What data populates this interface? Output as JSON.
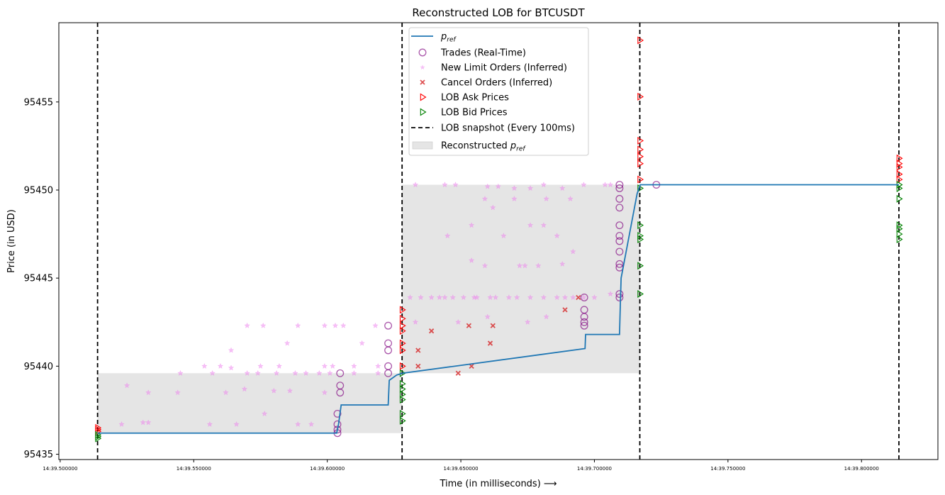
{
  "chart_data": {
    "type": "scatter",
    "title": "Reconstructed LOB for BTCUSDT",
    "xlabel": "Time (in milliseconds) ⟶",
    "ylabel": "Price (in USD)",
    "x_unit": "seconds past 14:39",
    "xlim": [
      39.4995,
      39.8286
    ],
    "ylim": [
      95434.7,
      95459.5
    ],
    "x_ticks": [
      {
        "value": 39.5,
        "label": "14:39.500000"
      },
      {
        "value": 39.55,
        "label": "14:39.550000"
      },
      {
        "value": 39.6,
        "label": "14:39.600000"
      },
      {
        "value": 39.65,
        "label": "14:39.650000"
      },
      {
        "value": 39.7,
        "label": "14:39.700000"
      },
      {
        "value": 39.75,
        "label": "14:39.750000"
      },
      {
        "value": 39.8,
        "label": "14:39.800000"
      }
    ],
    "y_ticks": [
      95435,
      95440,
      95445,
      95450,
      95455
    ],
    "legend_position": "top-center",
    "grid": false,
    "colors": {
      "pref": "#1f77b4",
      "trades": "#800080",
      "new_limit": "#ee82ee",
      "cancel": "#d62728",
      "ask": "#ff0000",
      "bid": "#008000",
      "snapshot": "#000000",
      "band": "#d3d3d3"
    },
    "legend": [
      {
        "key": "pref",
        "label": "p",
        "sub": "ref"
      },
      {
        "key": "trades",
        "label": "Trades (Real-Time)"
      },
      {
        "key": "new_limit",
        "label": "New Limit Orders (Inferred)"
      },
      {
        "key": "cancel",
        "label": "Cancel Orders (Inferred)"
      },
      {
        "key": "ask",
        "label": "LOB Ask Prices"
      },
      {
        "key": "bid",
        "label": "LOB Bid Prices"
      },
      {
        "key": "snapshot",
        "label": "LOB snapshot (Every 100ms)"
      },
      {
        "key": "band",
        "label": "Reconstructed p",
        "sub": "ref"
      }
    ],
    "snapshots": [
      39.514,
      39.628,
      39.717,
      39.814
    ],
    "bands": [
      {
        "x0": 39.514,
        "x1": 39.628,
        "y0": 95436.2,
        "y1": 95439.6
      },
      {
        "x0": 39.628,
        "x1": 39.717,
        "y0": 95439.6,
        "y1": 95450.3
      }
    ],
    "series": [
      {
        "name": "p_ref",
        "kind": "line",
        "points": [
          [
            39.514,
            95436.2
          ],
          [
            39.6035,
            95436.2
          ],
          [
            39.6042,
            95436.7
          ],
          [
            39.6052,
            95437.8
          ],
          [
            39.6228,
            95437.8
          ],
          [
            39.6232,
            95439.2
          ],
          [
            39.626,
            95439.5
          ],
          [
            39.6282,
            95439.6
          ],
          [
            39.6965,
            95441.0
          ],
          [
            39.6967,
            95441.8
          ],
          [
            39.7094,
            95441.8
          ],
          [
            39.7098,
            95444.0
          ],
          [
            39.71,
            95445.0
          ],
          [
            39.716,
            95449.8
          ],
          [
            39.7172,
            95450.3
          ],
          [
            39.814,
            95450.3
          ]
        ]
      },
      {
        "name": "Trades (Real-Time)",
        "kind": "circle",
        "points": [
          [
            39.6038,
            95436.2
          ],
          [
            39.6038,
            95436.4
          ],
          [
            39.6038,
            95436.7
          ],
          [
            39.6038,
            95437.3
          ],
          [
            39.6048,
            95438.5
          ],
          [
            39.6048,
            95438.9
          ],
          [
            39.6048,
            95439.6
          ],
          [
            39.6228,
            95439.6
          ],
          [
            39.6228,
            95440.0
          ],
          [
            39.6228,
            95440.9
          ],
          [
            39.6228,
            95441.3
          ],
          [
            39.6228,
            95442.3
          ],
          [
            39.6962,
            95442.3
          ],
          [
            39.6962,
            95442.5
          ],
          [
            39.6962,
            95442.8
          ],
          [
            39.6962,
            95443.2
          ],
          [
            39.6962,
            95443.9
          ],
          [
            39.7094,
            95443.9
          ],
          [
            39.7094,
            95444.1
          ],
          [
            39.7094,
            95445.6
          ],
          [
            39.7094,
            95445.8
          ],
          [
            39.7094,
            95446.5
          ],
          [
            39.7094,
            95447.1
          ],
          [
            39.7094,
            95447.4
          ],
          [
            39.7094,
            95448.0
          ],
          [
            39.7094,
            95449.0
          ],
          [
            39.7094,
            95449.5
          ],
          [
            39.7094,
            95450.1
          ],
          [
            39.7094,
            95450.3
          ],
          [
            39.7232,
            95450.3
          ]
        ]
      },
      {
        "name": "New Limit Orders (Inferred)",
        "kind": "star",
        "points": [
          [
            39.523,
            95436.7
          ],
          [
            39.531,
            95436.8
          ],
          [
            39.533,
            95436.8
          ],
          [
            39.556,
            95436.7
          ],
          [
            39.566,
            95436.7
          ],
          [
            39.5765,
            95437.3
          ],
          [
            39.589,
            95436.7
          ],
          [
            39.594,
            95436.7
          ],
          [
            39.525,
            95438.9
          ],
          [
            39.533,
            95438.5
          ],
          [
            39.544,
            95438.5
          ],
          [
            39.569,
            95438.7
          ],
          [
            39.58,
            95438.6
          ],
          [
            39.586,
            95438.6
          ],
          [
            39.599,
            95438.5
          ],
          [
            39.562,
            95438.5
          ],
          [
            39.545,
            95439.6
          ],
          [
            39.557,
            95439.6
          ],
          [
            39.564,
            95439.9
          ],
          [
            39.57,
            95439.6
          ],
          [
            39.574,
            95439.6
          ],
          [
            39.581,
            95439.6
          ],
          [
            39.588,
            95439.6
          ],
          [
            39.592,
            95439.6
          ],
          [
            39.597,
            95439.6
          ],
          [
            39.601,
            95439.6
          ],
          [
            39.61,
            95439.6
          ],
          [
            39.619,
            95439.6
          ],
          [
            39.554,
            95440.0
          ],
          [
            39.56,
            95440.0
          ],
          [
            39.575,
            95440.0
          ],
          [
            39.582,
            95440.0
          ],
          [
            39.599,
            95440.0
          ],
          [
            39.602,
            95440.0
          ],
          [
            39.61,
            95440.0
          ],
          [
            39.619,
            95440.0
          ],
          [
            39.564,
            95440.9
          ],
          [
            39.57,
            95442.3
          ],
          [
            39.576,
            95442.3
          ],
          [
            39.585,
            95441.3
          ],
          [
            39.589,
            95442.3
          ],
          [
            39.599,
            95442.3
          ],
          [
            39.606,
            95442.3
          ],
          [
            39.613,
            95441.3
          ],
          [
            39.618,
            95442.3
          ],
          [
            39.603,
            95442.3
          ],
          [
            39.631,
            95443.9
          ],
          [
            39.633,
            95442.5
          ],
          [
            39.635,
            95443.9
          ],
          [
            39.639,
            95443.9
          ],
          [
            39.642,
            95443.9
          ],
          [
            39.644,
            95443.9
          ],
          [
            39.647,
            95443.9
          ],
          [
            39.649,
            95442.5
          ],
          [
            39.651,
            95443.9
          ],
          [
            39.655,
            95443.9
          ],
          [
            39.661,
            95443.9
          ],
          [
            39.663,
            95443.9
          ],
          [
            39.668,
            95443.9
          ],
          [
            39.671,
            95443.9
          ],
          [
            39.676,
            95443.9
          ],
          [
            39.681,
            95443.9
          ],
          [
            39.686,
            95443.9
          ],
          [
            39.689,
            95443.9
          ],
          [
            39.692,
            95443.9
          ],
          [
            39.696,
            95443.9
          ],
          [
            39.654,
            95446.0
          ],
          [
            39.659,
            95445.7
          ],
          [
            39.666,
            95447.4
          ],
          [
            39.672,
            95445.7
          ],
          [
            39.674,
            95445.7
          ],
          [
            39.679,
            95445.7
          ],
          [
            39.688,
            95445.8
          ],
          [
            39.692,
            95446.5
          ],
          [
            39.645,
            95447.4
          ],
          [
            39.654,
            95448.0
          ],
          [
            39.662,
            95449.0
          ],
          [
            39.67,
            95449.5
          ],
          [
            39.676,
            95448.0
          ],
          [
            39.681,
            95448.0
          ],
          [
            39.686,
            95447.4
          ],
          [
            39.691,
            95449.5
          ],
          [
            39.633,
            95450.3
          ],
          [
            39.644,
            95450.3
          ],
          [
            39.648,
            95450.3
          ],
          [
            39.66,
            95450.2
          ],
          [
            39.664,
            95450.2
          ],
          [
            39.67,
            95450.1
          ],
          [
            39.676,
            95450.1
          ],
          [
            39.681,
            95450.3
          ],
          [
            39.688,
            95450.1
          ],
          [
            39.696,
            95450.3
          ],
          [
            39.704,
            95450.3
          ],
          [
            39.706,
            95450.3
          ],
          [
            39.659,
            95449.5
          ],
          [
            39.682,
            95449.5
          ],
          [
            39.7,
            95443.9
          ],
          [
            39.706,
            95444.1
          ],
          [
            39.656,
            95443.9
          ],
          [
            39.66,
            95442.8
          ],
          [
            39.675,
            95442.5
          ],
          [
            39.682,
            95442.8
          ]
        ]
      },
      {
        "name": "Cancel Orders (Inferred)",
        "kind": "x",
        "points": [
          [
            39.634,
            95440.0
          ],
          [
            39.634,
            95440.9
          ],
          [
            39.639,
            95442.0
          ],
          [
            39.649,
            95439.6
          ],
          [
            39.653,
            95442.3
          ],
          [
            39.654,
            95440.0
          ],
          [
            39.661,
            95441.3
          ],
          [
            39.662,
            95442.3
          ],
          [
            39.689,
            95443.2
          ],
          [
            39.694,
            95443.9
          ]
        ]
      },
      {
        "name": "LOB Ask Prices",
        "kind": "tri-right",
        "points": [
          [
            39.514,
            95436.3
          ],
          [
            39.514,
            95436.4
          ],
          [
            39.514,
            95436.5
          ],
          [
            39.628,
            95440.0
          ],
          [
            39.628,
            95440.9
          ],
          [
            39.628,
            95441.3
          ],
          [
            39.628,
            95442.0
          ],
          [
            39.628,
            95442.3
          ],
          [
            39.628,
            95442.7
          ],
          [
            39.628,
            95443.2
          ],
          [
            39.717,
            95450.6
          ],
          [
            39.717,
            95451.5
          ],
          [
            39.717,
            95451.9
          ],
          [
            39.717,
            95452.3
          ],
          [
            39.717,
            95452.8
          ],
          [
            39.717,
            95455.3
          ],
          [
            39.717,
            95458.5
          ],
          [
            39.814,
            95450.6
          ],
          [
            39.814,
            95450.9
          ],
          [
            39.814,
            95451.3
          ],
          [
            39.814,
            95451.5
          ],
          [
            39.814,
            95451.8
          ]
        ]
      },
      {
        "name": "LOB Bid Prices",
        "kind": "tri-right",
        "points": [
          [
            39.514,
            95435.9
          ],
          [
            39.514,
            95436.0
          ],
          [
            39.514,
            95436.1
          ],
          [
            39.628,
            95436.9
          ],
          [
            39.628,
            95437.3
          ],
          [
            39.628,
            95438.1
          ],
          [
            39.628,
            95438.4
          ],
          [
            39.628,
            95438.7
          ],
          [
            39.628,
            95439.0
          ],
          [
            39.628,
            95439.6
          ],
          [
            39.717,
            95444.1
          ],
          [
            39.717,
            95445.7
          ],
          [
            39.717,
            95447.2
          ],
          [
            39.717,
            95447.4
          ],
          [
            39.717,
            95448.0
          ],
          [
            39.717,
            95450.1
          ],
          [
            39.814,
            95447.2
          ],
          [
            39.814,
            95447.5
          ],
          [
            39.814,
            95447.8
          ],
          [
            39.814,
            95448.0
          ],
          [
            39.814,
            95449.5
          ],
          [
            39.814,
            95450.1
          ],
          [
            39.814,
            95450.3
          ]
        ]
      }
    ]
  }
}
